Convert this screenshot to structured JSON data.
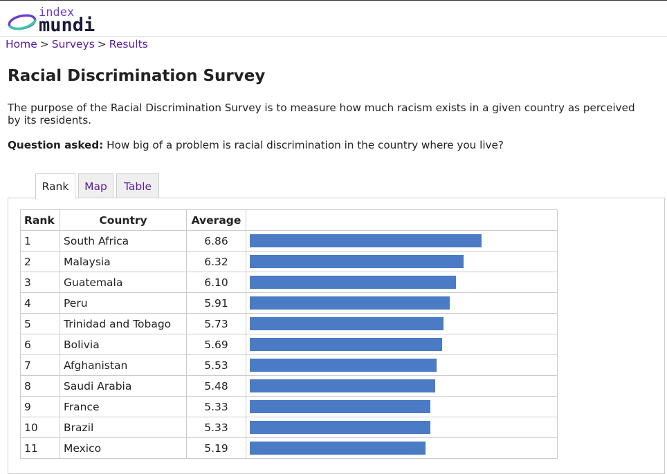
{
  "logo": {
    "top": "index",
    "bottom": "mundi",
    "accent_color": "#3ec7a6",
    "ring_color": "#6a3fc9"
  },
  "breadcrumb": [
    {
      "label": "Home"
    },
    {
      "label": "Surveys"
    },
    {
      "label": "Results"
    }
  ],
  "breadcrumb_sep": ">",
  "title": "Racial Discrimination Survey",
  "description": "The purpose of the Racial Discrimination Survey is to measure how much racism exists in a given country as perceived by its residents.",
  "question_label": "Question asked:",
  "question_text": "How big of a problem is racial discrimination in the country where you live?",
  "tabs": [
    {
      "label": "Rank",
      "active": true
    },
    {
      "label": "Map",
      "active": false
    },
    {
      "label": "Table",
      "active": false
    }
  ],
  "table": {
    "headers": {
      "rank": "Rank",
      "country": "Country",
      "average": "Average"
    },
    "bar_color": "#4a7bc4",
    "scale_max": 9.0,
    "rows": [
      {
        "rank": "1",
        "country": "South Africa",
        "average": "6.86"
      },
      {
        "rank": "2",
        "country": "Malaysia",
        "average": "6.32"
      },
      {
        "rank": "3",
        "country": "Guatemala",
        "average": "6.10"
      },
      {
        "rank": "4",
        "country": "Peru",
        "average": "5.91"
      },
      {
        "rank": "5",
        "country": "Trinidad and Tobago",
        "average": "5.73"
      },
      {
        "rank": "6",
        "country": "Bolivia",
        "average": "5.69"
      },
      {
        "rank": "7",
        "country": "Afghanistan",
        "average": "5.53"
      },
      {
        "rank": "8",
        "country": "Saudi Arabia",
        "average": "5.48"
      },
      {
        "rank": "9",
        "country": "France",
        "average": "5.33"
      },
      {
        "rank": "10",
        "country": "Brazil",
        "average": "5.33"
      },
      {
        "rank": "11",
        "country": "Mexico",
        "average": "5.19"
      }
    ]
  }
}
